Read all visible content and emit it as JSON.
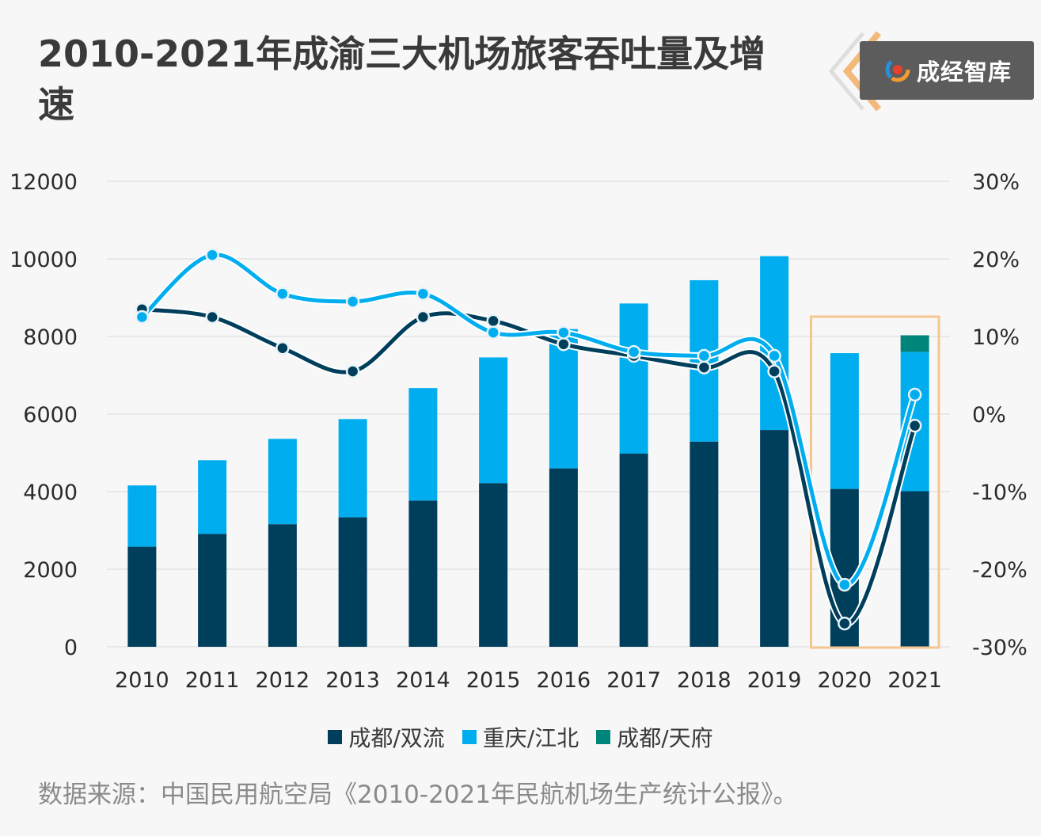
{
  "title": "2010-2021年成渝三大机场旅客吞吐量及增速",
  "badge": {
    "text": "成经智库",
    "logo_icon": "swirl-logo-icon"
  },
  "source": "数据来源：中国民用航空局《2010-2021年民航机场生产统计公报》。",
  "colors": {
    "chengdu_shuangliu": "#003f5c",
    "chongqing_jiangbei": "#00aeef",
    "chengdu_tianfu": "#00857b",
    "highlight_box": "#f5c690",
    "grid": "#e3e3e3",
    "axis_text": "#2b2b2b"
  },
  "chart_data": {
    "type": "bar",
    "stacked": true,
    "categories": [
      "2010",
      "2011",
      "2012",
      "2013",
      "2014",
      "2015",
      "2016",
      "2017",
      "2018",
      "2019",
      "2020",
      "2021"
    ],
    "series": [
      {
        "name": "成都/双流",
        "values": [
          2580,
          2910,
          3160,
          3340,
          3770,
          4220,
          4600,
          4980,
          5290,
          5590,
          4070,
          4010
        ]
      },
      {
        "name": "重庆/江北",
        "values": [
          1580,
          1900,
          2200,
          2530,
          2900,
          3240,
          3590,
          3870,
          4160,
          4480,
          3500,
          3590
        ]
      },
      {
        "name": "成都/天府",
        "values": [
          0,
          0,
          0,
          0,
          0,
          0,
          0,
          0,
          0,
          0,
          0,
          430
        ]
      }
    ],
    "lines": [
      {
        "series": "成都/双流",
        "axis": "right",
        "values": [
          13.5,
          12.5,
          8.5,
          5.5,
          12.5,
          12.0,
          9.0,
          7.5,
          6.0,
          5.5,
          -27.0,
          -1.5
        ]
      },
      {
        "series": "重庆/江北",
        "axis": "right",
        "values": [
          12.5,
          20.5,
          15.5,
          14.5,
          15.5,
          10.5,
          10.5,
          8.0,
          7.5,
          7.5,
          -22.0,
          2.5
        ]
      }
    ],
    "ylim_left": [
      0,
      12000
    ],
    "yticks_left": [
      "0",
      "2000",
      "4000",
      "6000",
      "8000",
      "10000",
      "12000"
    ],
    "ylim_right": [
      -30,
      30
    ],
    "yticks_right": [
      "-30%",
      "-20%",
      "-10%",
      "0%",
      "10%",
      "20%",
      "30%"
    ],
    "highlight_categories": [
      "2020",
      "2021"
    ],
    "grid": true,
    "legend_position": "bottom"
  }
}
